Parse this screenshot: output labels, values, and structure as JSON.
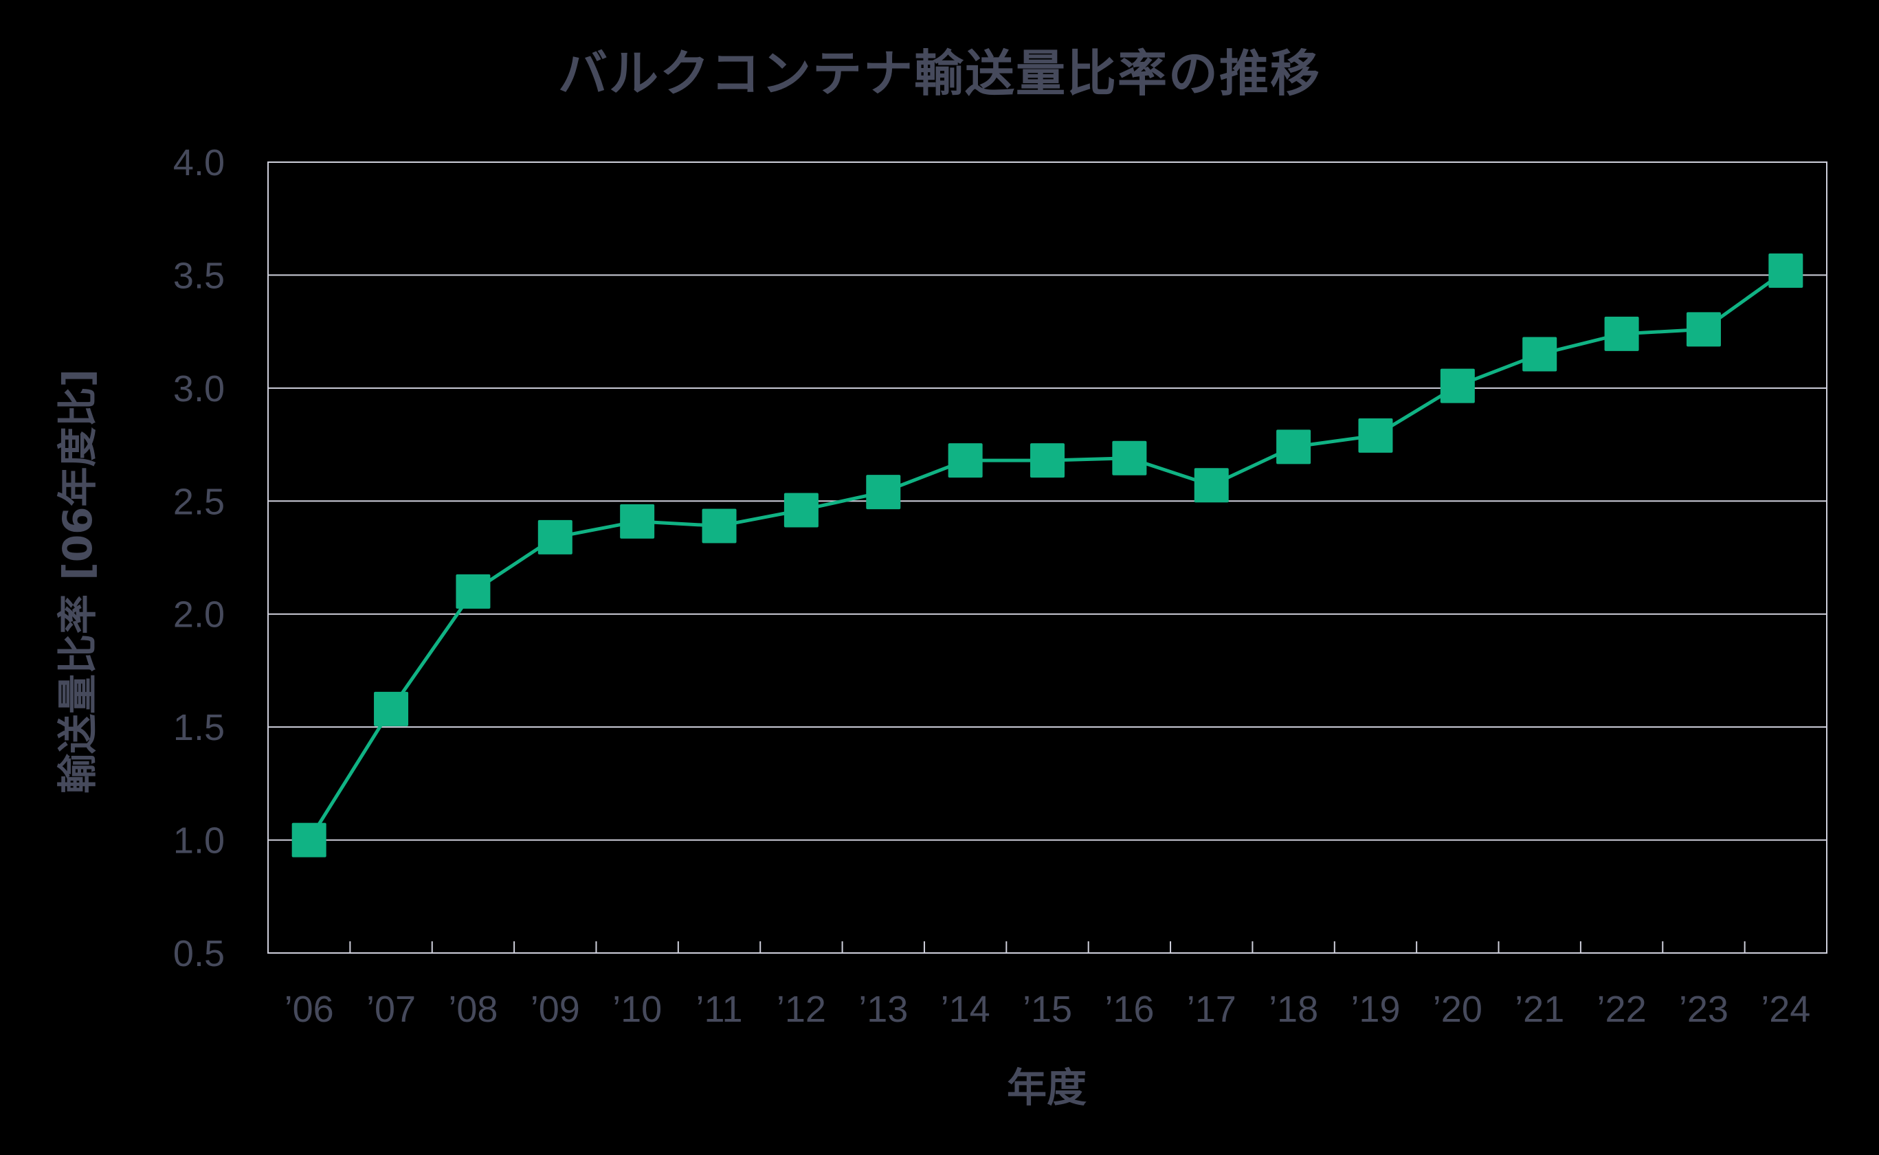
{
  "chart_data": {
    "type": "line",
    "title": "バルクコンテナ輸送量比率の推移",
    "xlabel": "年度",
    "ylabel": "輸送量比率 [06年度比]",
    "categories": [
      "’06",
      "’07",
      "’08",
      "’09",
      "’10",
      "’11",
      "’12",
      "’13",
      "’14",
      "’15",
      "’16",
      "’17",
      "’18",
      "’19",
      "’20",
      "’21",
      "’22",
      "’23",
      "’24"
    ],
    "series": [
      {
        "name": "輸送量比率",
        "color": "#10b384",
        "marker": "square",
        "values": [
          1.0,
          1.58,
          2.1,
          2.34,
          2.41,
          2.39,
          2.46,
          2.54,
          2.68,
          2.68,
          2.69,
          2.57,
          2.74,
          2.79,
          3.01,
          3.15,
          3.24,
          3.26,
          3.52
        ]
      }
    ],
    "ylim": [
      0.5,
      4.0
    ],
    "yticks": [
      "0.5",
      "1.0",
      "1.5",
      "2.0",
      "2.5",
      "3.0",
      "3.5",
      "4.0"
    ],
    "grid": "horizontal",
    "legend": "none"
  },
  "colors": {
    "background": "#000000",
    "text": "#464a5c",
    "grid": "#cfd0dc",
    "series": "#10b384"
  }
}
